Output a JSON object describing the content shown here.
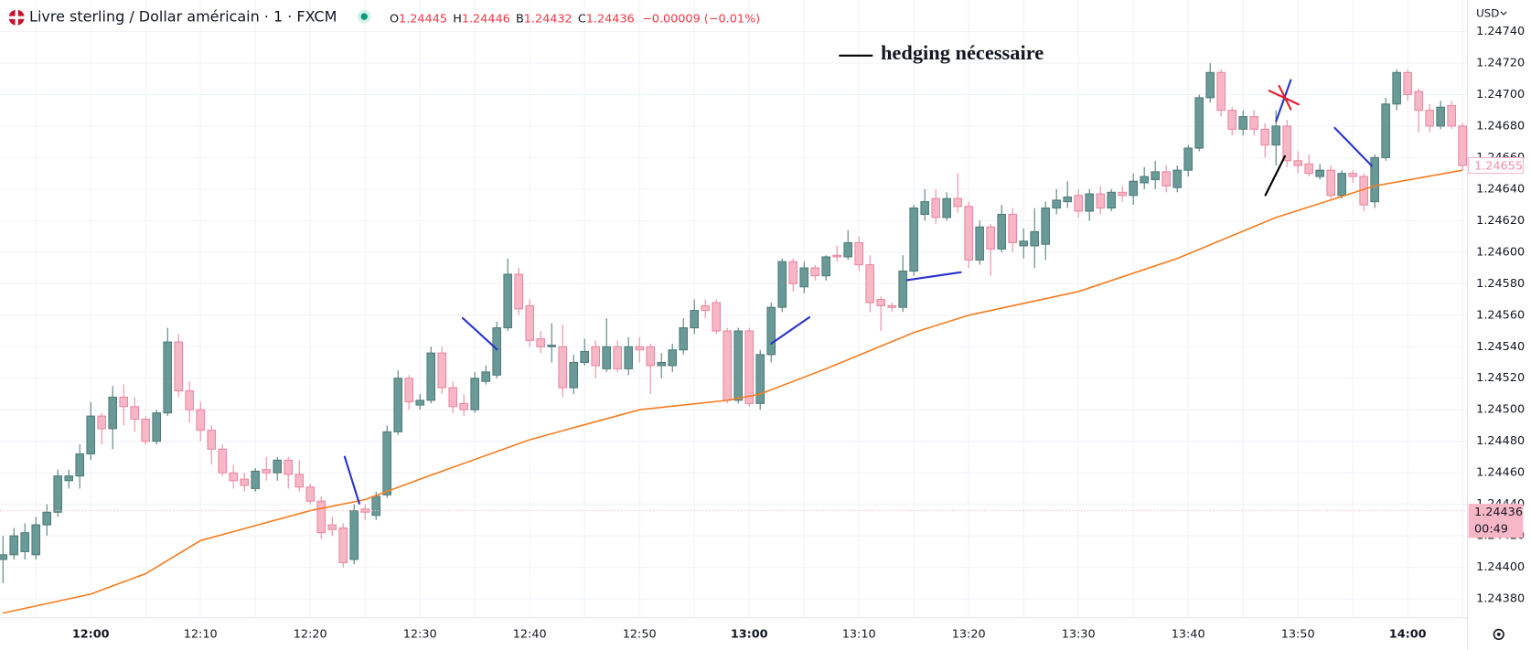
{
  "chart_data": {
    "type": "candlestick",
    "title": "Livre sterling / Dollar américain · 1 · FXCM",
    "legend_values": [
      {
        "label": "O",
        "value": 1.24445
      },
      {
        "label": "H",
        "value": 1.24446
      },
      {
        "label": "B",
        "value": 1.24432
      },
      {
        "label": "C",
        "value": 1.24436
      }
    ],
    "change": "−0.00009 (−0.01%)",
    "currency": "USD",
    "annotation": "hedging nécessaire",
    "x": [
      "11:52",
      "11:53",
      "11:54",
      "11:55",
      "11:56",
      "11:57",
      "11:58",
      "11:59",
      "12:00",
      "12:01",
      "12:02",
      "12:03",
      "12:04",
      "12:05",
      "12:06",
      "12:07",
      "12:08",
      "12:09",
      "12:10",
      "12:11",
      "12:12",
      "12:13",
      "12:14",
      "12:15",
      "12:16",
      "12:17",
      "12:18",
      "12:19",
      "12:20",
      "12:21",
      "12:22",
      "12:23",
      "12:24",
      "12:25",
      "12:26",
      "12:27",
      "12:28",
      "12:29",
      "12:30",
      "12:31",
      "12:32",
      "12:33",
      "12:34",
      "12:35",
      "12:36",
      "12:37",
      "12:38",
      "12:39",
      "12:40",
      "12:41",
      "12:42",
      "12:43",
      "12:44",
      "12:45",
      "12:46",
      "12:47",
      "12:48",
      "12:49",
      "12:50",
      "12:51",
      "12:52",
      "12:53",
      "12:54",
      "12:55",
      "12:56",
      "12:57",
      "12:58",
      "12:59",
      "13:00",
      "13:01",
      "13:02",
      "13:03",
      "13:04",
      "13:05",
      "13:06",
      "13:07",
      "13:08",
      "13:09",
      "13:10",
      "13:11",
      "13:12",
      "13:13",
      "13:14",
      "13:15",
      "13:16",
      "13:17",
      "13:18",
      "13:19",
      "13:20",
      "13:21",
      "13:22",
      "13:23",
      "13:24",
      "13:25",
      "13:26",
      "13:27",
      "13:28",
      "13:29",
      "13:30",
      "13:31",
      "13:32",
      "13:33",
      "13:34",
      "13:35",
      "13:36",
      "13:37",
      "13:38",
      "13:39",
      "13:40",
      "13:41",
      "13:42",
      "13:43",
      "13:44",
      "13:45",
      "13:46",
      "13:47",
      "13:48",
      "13:49",
      "13:50",
      "13:51",
      "13:52",
      "13:53",
      "13:54",
      "13:55",
      "13:56",
      "13:57",
      "13:58",
      "13:59",
      "14:00",
      "14:01",
      "14:02",
      "14:03",
      "14:04",
      "14:05"
    ],
    "xticks": [
      "12:00",
      "12:10",
      "12:20",
      "12:30",
      "12:40",
      "12:50",
      "13:00",
      "13:10",
      "13:20",
      "13:30",
      "13:40",
      "13:50",
      "14:00"
    ],
    "open": [
      1.24405,
      1.24408,
      1.2441,
      1.24408,
      1.24427,
      1.24435,
      1.24455,
      1.24458,
      1.24472,
      1.24496,
      1.24488,
      1.24508,
      1.24502,
      1.24494,
      1.2448,
      1.24498,
      1.24543,
      1.24512,
      1.245,
      1.24487,
      1.24475,
      1.2446,
      1.24456,
      1.2445,
      1.24462,
      1.2446,
      1.24468,
      1.24459,
      1.24451,
      1.24442,
      1.24427,
      1.24425,
      1.24405,
      1.24437,
      1.24433,
      1.24446,
      1.24486,
      1.2452,
      1.24503,
      1.24506,
      1.24536,
      1.24514,
      1.24504,
      1.245,
      1.24518,
      1.24522,
      1.24552,
      1.24586,
      1.24566,
      1.24545,
      1.2454,
      1.2454,
      1.24514,
      1.2453,
      1.2454,
      1.24526,
      1.2454,
      1.24526,
      1.2454,
      1.2454,
      1.24528,
      1.24528,
      1.24538,
      1.24552,
      1.24566,
      1.24568,
      1.2455,
      1.24506,
      1.2455,
      1.24504,
      1.24535,
      1.24565,
      1.24594,
      1.24578,
      1.2459,
      1.24585,
      1.24598,
      1.24597,
      1.24606,
      1.24592,
      1.2457,
      1.24566,
      1.24565,
      1.24588,
      1.24624,
      1.24634,
      1.24622,
      1.24634,
      1.24629,
      1.24595,
      1.24616,
      1.24602,
      1.24624,
      1.24604,
      1.24604,
      1.24605,
      1.24628,
      1.24632,
      1.24636,
      1.24626,
      1.24637,
      1.24628,
      1.24638,
      1.24636,
      1.24644,
      1.24646,
      1.24651,
      1.24641,
      1.24652,
      1.24666,
      1.24698,
      1.24714,
      1.2469,
      1.24678,
      1.24686,
      1.24678,
      1.24668,
      1.2468,
      1.24658,
      1.24656,
      1.24648,
      1.24652,
      1.24636,
      1.2465,
      1.24648,
      1.24632,
      1.2466,
      1.24694,
      1.24714,
      1.24702,
      1.2469,
      1.2468,
      1.24693,
      1.2468
    ],
    "high": [
      1.2442,
      1.24425,
      1.24428,
      1.24432,
      1.2444,
      1.24462,
      1.24462,
      1.24478,
      1.24505,
      1.24498,
      1.24515,
      1.24516,
      1.24508,
      1.24496,
      1.245,
      1.24552,
      1.24548,
      1.24518,
      1.24505,
      1.2449,
      1.24478,
      1.24465,
      1.2446,
      1.24463,
      1.2447,
      1.2447,
      1.2447,
      1.24468,
      1.24453,
      1.24445,
      1.24432,
      1.24428,
      1.2444,
      1.2444,
      1.24448,
      1.2449,
      1.24525,
      1.24522,
      1.2451,
      1.2454,
      1.2454,
      1.24518,
      1.2451,
      1.24524,
      1.24528,
      1.24556,
      1.24596,
      1.2459,
      1.2457,
      1.2455,
      1.24555,
      1.24554,
      1.24535,
      1.24545,
      1.24544,
      1.24558,
      1.24544,
      1.24546,
      1.24546,
      1.24542,
      1.24536,
      1.24542,
      1.24558,
      1.2457,
      1.2457,
      1.2457,
      1.24552,
      1.24552,
      1.24552,
      1.24538,
      1.24568,
      1.24596,
      1.24596,
      1.24594,
      1.24592,
      1.24598,
      1.24604,
      1.24614,
      1.2461,
      1.24598,
      1.24572,
      1.24568,
      1.24598,
      1.2463,
      1.2464,
      1.2464,
      1.24638,
      1.2465,
      1.24632,
      1.2462,
      1.24618,
      1.2463,
      1.24628,
      1.24615,
      1.24628,
      1.24632,
      1.2464,
      1.24645,
      1.2464,
      1.2464,
      1.24642,
      1.2464,
      1.24642,
      1.2465,
      1.24654,
      1.24658,
      1.24655,
      1.24655,
      1.24668,
      1.247,
      1.2472,
      1.24716,
      1.24692,
      1.2469,
      1.2469,
      1.24682,
      1.2469,
      1.24684,
      1.24664,
      1.24662,
      1.24656,
      1.24655,
      1.24652,
      1.24652,
      1.2465,
      1.24662,
      1.24698,
      1.24716,
      1.24716,
      1.24704,
      1.24694,
      1.24696,
      1.24696,
      1.24682
    ],
    "low": [
      1.2439,
      1.24405,
      1.24405,
      1.24405,
      1.2442,
      1.24432,
      1.2445,
      1.2445,
      1.24468,
      1.24478,
      1.24475,
      1.2449,
      1.24486,
      1.24478,
      1.24478,
      1.24496,
      1.24508,
      1.24492,
      1.2448,
      1.24465,
      1.24458,
      1.2445,
      1.24448,
      1.24448,
      1.24455,
      1.24455,
      1.2445,
      1.24448,
      1.2444,
      1.24418,
      1.2442,
      1.244,
      1.24402,
      1.2443,
      1.2443,
      1.24444,
      1.24484,
      1.245,
      1.245,
      1.24504,
      1.2451,
      1.24498,
      1.24496,
      1.24498,
      1.24516,
      1.2452,
      1.2455,
      1.2456,
      1.2454,
      1.24536,
      1.2453,
      1.24508,
      1.2451,
      1.24528,
      1.2452,
      1.24524,
      1.24524,
      1.24522,
      1.2453,
      1.2451,
      1.2452,
      1.24524,
      1.24535,
      1.24548,
      1.24558,
      1.24548,
      1.24504,
      1.24504,
      1.24502,
      1.245,
      1.2453,
      1.24562,
      1.24575,
      1.24574,
      1.24582,
      1.24582,
      1.24594,
      1.24595,
      1.24588,
      1.24562,
      1.2455,
      1.24562,
      1.24562,
      1.24585,
      1.2462,
      1.24618,
      1.2462,
      1.24625,
      1.2459,
      1.24592,
      1.24585,
      1.246,
      1.246,
      1.24596,
      1.2459,
      1.24595,
      1.24624,
      1.24628,
      1.24622,
      1.2462,
      1.24624,
      1.24626,
      1.24632,
      1.2463,
      1.2464,
      1.2464,
      1.24638,
      1.24638,
      1.24648,
      1.24664,
      1.24695,
      1.24686,
      1.24674,
      1.24674,
      1.24674,
      1.2466,
      1.24655,
      1.24654,
      1.2465,
      1.24648,
      1.24646,
      1.24634,
      1.24634,
      1.24644,
      1.24626,
      1.24628,
      1.24658,
      1.2469,
      1.24696,
      1.24676,
      1.24676,
      1.24678,
      1.24678,
      1.24652
    ],
    "close": [
      1.24408,
      1.2442,
      1.24422,
      1.24427,
      1.24435,
      1.24458,
      1.24458,
      1.24472,
      1.24496,
      1.24488,
      1.24508,
      1.24502,
      1.24494,
      1.2448,
      1.24498,
      1.24543,
      1.24512,
      1.245,
      1.24487,
      1.24475,
      1.2446,
      1.24455,
      1.24452,
      1.24461,
      1.2446,
      1.24468,
      1.24459,
      1.24451,
      1.24442,
      1.24422,
      1.24424,
      1.24403,
      1.24436,
      1.24435,
      1.24445,
      1.24486,
      1.2452,
      1.24505,
      1.24506,
      1.24536,
      1.24514,
      1.24502,
      1.245,
      1.2452,
      1.24524,
      1.24552,
      1.24586,
      1.24564,
      1.24544,
      1.2454,
      1.24541,
      1.24514,
      1.2453,
      1.24537,
      1.24528,
      1.2454,
      1.24526,
      1.2454,
      1.24538,
      1.24528,
      1.2453,
      1.24538,
      1.24552,
      1.24563,
      1.24563,
      1.2455,
      1.24506,
      1.2455,
      1.24504,
      1.24535,
      1.24565,
      1.24594,
      1.2458,
      1.2459,
      1.24585,
      1.24597,
      1.24597,
      1.24606,
      1.24592,
      1.24568,
      1.24566,
      1.24565,
      1.24588,
      1.24628,
      1.24632,
      1.24622,
      1.24634,
      1.24629,
      1.24595,
      1.24616,
      1.24602,
      1.24624,
      1.24606,
      1.24607,
      1.24613,
      1.24628,
      1.24633,
      1.24635,
      1.24626,
      1.24637,
      1.24628,
      1.24638,
      1.24636,
      1.24645,
      1.24648,
      1.24651,
      1.24642,
      1.24652,
      1.24666,
      1.24698,
      1.24714,
      1.2469,
      1.24678,
      1.24686,
      1.24678,
      1.24668,
      1.2468,
      1.24658,
      1.24655,
      1.2465,
      1.24652,
      1.24636,
      1.2465,
      1.24648,
      1.2463,
      1.2466,
      1.24694,
      1.24714,
      1.247,
      1.2469,
      1.2468,
      1.24692,
      1.2468,
      1.24655
    ],
    "up_color": "#6a9a97",
    "down_color": "#f7b7c6",
    "series": [
      {
        "color": "#f57c1f",
        "x": [
          "11:52",
          "12:00",
          "12:05",
          "12:10",
          "12:20",
          "12:25",
          "12:30",
          "12:40",
          "12:50",
          "12:58",
          "13:01",
          "13:07",
          "13:15",
          "13:20",
          "13:30",
          "13:39",
          "13:48",
          "13:57",
          "14:05"
        ],
        "values": [
          1.24371,
          1.24383,
          1.24396,
          1.24417,
          1.24436,
          1.24443,
          1.24456,
          1.24481,
          1.245,
          1.24506,
          1.2451,
          1.24526,
          1.24549,
          1.2456,
          1.24575,
          1.24596,
          1.24622,
          1.24642,
          1.24652
        ]
      }
    ],
    "ylim": [
      1.24368,
      1.2476
    ],
    "yticks": [
      {
        "value": 1.2438,
        "label": "1.24380"
      },
      {
        "value": 1.244,
        "label": "1.24400"
      },
      {
        "value": 1.2442,
        "label": "1.24420"
      },
      {
        "value": 1.2444,
        "label": "1.24440"
      },
      {
        "value": 1.2446,
        "label": "1.24460"
      },
      {
        "value": 1.2448,
        "label": "1.24480"
      },
      {
        "value": 1.245,
        "label": "1.24500"
      },
      {
        "value": 1.2452,
        "label": "1.24520"
      },
      {
        "value": 1.2454,
        "label": "1.24540"
      },
      {
        "value": 1.2456,
        "label": "1.24560"
      },
      {
        "value": 1.2458,
        "label": "1.24580"
      },
      {
        "value": 1.246,
        "label": "1.24600"
      },
      {
        "value": 1.2462,
        "label": "1.24620"
      },
      {
        "value": 1.2464,
        "label": "1.24640"
      },
      {
        "value": 1.2466,
        "label": "1.24660"
      },
      {
        "value": 1.2468,
        "label": "1.24680"
      },
      {
        "value": 1.247,
        "label": "1.24700"
      },
      {
        "value": 1.2472,
        "label": "1.24720"
      },
      {
        "value": 1.2474,
        "label": "1.24740"
      }
    ],
    "grid": true,
    "price_labels": [
      {
        "value": 1.24655,
        "label": "1.24655"
      },
      {
        "value": 1.24436,
        "label": "1.24436",
        "countdown": "00:49"
      }
    ]
  }
}
